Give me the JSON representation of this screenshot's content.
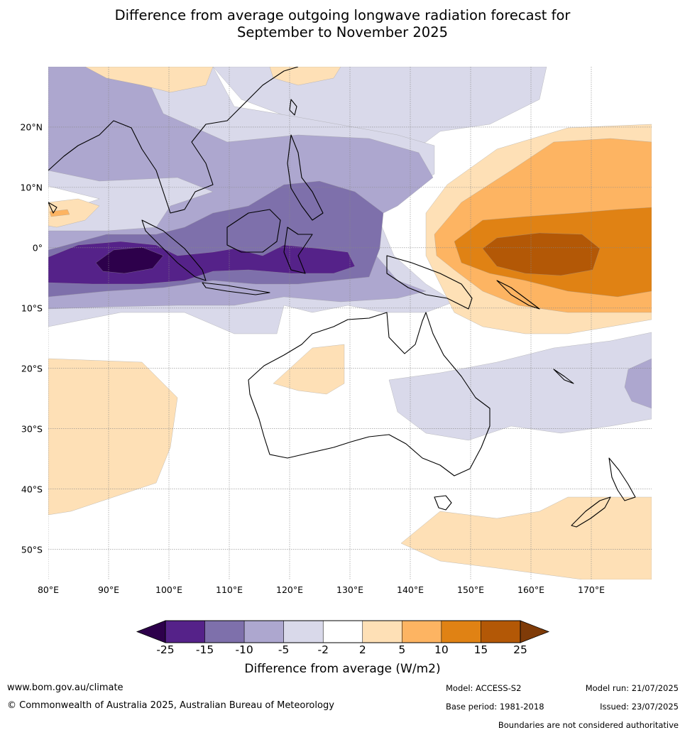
{
  "title_line1": "Difference from average outgoing longwave radiation forecast for",
  "title_line2": "September to November 2025",
  "map": {
    "lon_range": [
      80,
      180
    ],
    "lat_range": [
      -55,
      30
    ],
    "lon_ticks": [
      {
        "value": 80,
        "label": "80°E"
      },
      {
        "value": 90,
        "label": "90°E"
      },
      {
        "value": 100,
        "label": "100°E"
      },
      {
        "value": 110,
        "label": "110°E"
      },
      {
        "value": 120,
        "label": "120°E"
      },
      {
        "value": 130,
        "label": "130°E"
      },
      {
        "value": 140,
        "label": "140°E"
      },
      {
        "value": 150,
        "label": "150°E"
      },
      {
        "value": 160,
        "label": "160°E"
      },
      {
        "value": 170,
        "label": "170°E"
      }
    ],
    "lat_ticks": [
      {
        "value": 20,
        "label": "20°N"
      },
      {
        "value": 10,
        "label": "10°N"
      },
      {
        "value": 0,
        "label": "0°"
      },
      {
        "value": -10,
        "label": "10°S"
      },
      {
        "value": -20,
        "label": "20°S"
      },
      {
        "value": -30,
        "label": "30°S"
      },
      {
        "value": -40,
        "label": "40°S"
      },
      {
        "value": -50,
        "label": "50°S"
      }
    ],
    "grid": true
  },
  "colorbar": {
    "title": "Difference from average (W/m2)",
    "bounds": [
      "-25",
      "-15",
      "-10",
      "-5",
      "-2",
      "2",
      "5",
      "10",
      "15",
      "25"
    ],
    "colors": [
      "#552289",
      "#7e70ab",
      "#ada7cf",
      "#d9d9ea",
      "#ffffff",
      "#fee0b6",
      "#fdb462",
      "#e08214",
      "#b35806"
    ],
    "under_color": "#2d004b",
    "over_color": "#7f3b08"
  },
  "palette": {
    "p25": "#2d004b",
    "p15": "#552289",
    "p10": "#7e70ab",
    "p5": "#ada7cf",
    "p2": "#d9d9ea",
    "o2": "#fee0b6",
    "o5": "#fdb462",
    "o10": "#e08214",
    "o15": "#b35806"
  },
  "footer": {
    "website": "www.bom.gov.au/climate",
    "copyright": "© Commonwealth of Australia 2025, Australian Bureau of Meteorology",
    "model": "Model: ACCESS-S2",
    "base_period": "Base period: 1981-2018",
    "model_run": "Model run: 21/07/2025",
    "issued": "Issued: 23/07/2025",
    "disclaimer": "Boundaries are not considered authoritative"
  }
}
